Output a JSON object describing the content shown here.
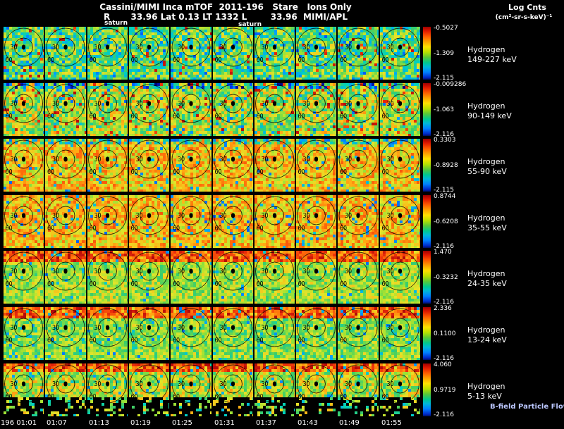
{
  "header": {
    "line1": "Cassini/MIMI Inca mTOF  2011-196   Stare   Ions Only",
    "line2": "R       33.96 Lat 0.13 LT 1332 L        33.96  MIMI/APL",
    "log_units_title": "Log Cnts",
    "log_units_sub": "(cm²-sr-s-keV)⁻¹"
  },
  "annotations": {
    "saturn_left": "saturn",
    "saturn_right": "saturn"
  },
  "overlay": {
    "inner_label": "30",
    "outer_label": "60"
  },
  "bfield_label": "B-field Particle Flow",
  "time_axis": [
    "196 01:01",
    "01:07",
    "01:13",
    "01:19",
    "01:25",
    "01:31",
    "01:37",
    "01:43",
    "01:49",
    "01:55"
  ],
  "rows": [
    {
      "species": "Hydrogen",
      "energy": "149-227 keV",
      "cbar_max": "-0.5027",
      "cbar_mid": "-1.309",
      "cbar_min": "-2.115"
    },
    {
      "species": "Hydrogen",
      "energy": "90-149 keV",
      "cbar_max": "-0.009286",
      "cbar_mid": "-1.063",
      "cbar_min": "-2.116"
    },
    {
      "species": "Hydrogen",
      "energy": "55-90 keV",
      "cbar_max": "0.3303",
      "cbar_mid": "-0.8928",
      "cbar_min": "-2.115"
    },
    {
      "species": "Hydrogen",
      "energy": "35-55 keV",
      "cbar_max": "0.8744",
      "cbar_mid": "-0.6208",
      "cbar_min": "-2.116"
    },
    {
      "species": "Hydrogen",
      "energy": "24-35 keV",
      "cbar_max": "1.470",
      "cbar_mid": "-0.3232",
      "cbar_min": "-2.116"
    },
    {
      "species": "Hydrogen",
      "energy": "13-24 keV",
      "cbar_max": "2.336",
      "cbar_mid": "0.1100",
      "cbar_min": "-2.116"
    },
    {
      "species": "Hydrogen",
      "energy": "5-13 keV",
      "cbar_max": "4.060",
      "cbar_mid": "0.9719",
      "cbar_min": "-2.116"
    }
  ],
  "chart_data": {
    "type": "heatmap",
    "title": "Cassini/MIMI Inca mTOF 2011-196 Stare Ions Only",
    "subtitle": "R 33.96 Lat 0.13 LT 1332 L 33.96 MIMI/APL",
    "instrument": "MIMI/APL",
    "date_doy": "2011-196",
    "mode": "Stare",
    "selection": "Ions Only",
    "units": "Log Cnts (cm2-sr-s-keV)-1",
    "layout": "7 energy-band rows x 10 six-minute sky-map frames; per-row rainbow colorbar at right (red=max, blue=min)",
    "overlay_circles_deg": [
      30,
      60
    ],
    "overlay_marker": "Saturn disk at frame center",
    "time_ticks": [
      "196 01:01",
      "01:07",
      "01:13",
      "01:19",
      "01:25",
      "01:31",
      "01:37",
      "01:43",
      "01:49",
      "01:55"
    ],
    "rows": [
      {
        "species": "Hydrogen",
        "energy_range_keV": "149-227",
        "cbar": {
          "max": -0.5027,
          "mid": -1.309,
          "min": -2.115
        },
        "palette_profile": "green with cyan/blue patches, sparse orange"
      },
      {
        "species": "Hydrogen",
        "energy_range_keV": "90-149",
        "cbar": {
          "max": -0.009286,
          "mid": -1.063,
          "min": -2.116
        },
        "palette_profile": "green-yellow with orange patches, cyan at top edges"
      },
      {
        "species": "Hydrogen",
        "energy_range_keV": "55-90",
        "cbar": {
          "max": 0.3303,
          "mid": -0.8928,
          "min": -2.115
        },
        "palette_profile": "orange/red dominant, cyan strip at top"
      },
      {
        "species": "Hydrogen",
        "energy_range_keV": "35-55",
        "cbar": {
          "max": 0.8744,
          "mid": -0.6208,
          "min": -2.116
        },
        "palette_profile": "orange/red dominant with blue specks"
      },
      {
        "species": "Hydrogen",
        "energy_range_keV": "24-35",
        "cbar": {
          "max": 1.47,
          "mid": -0.3232,
          "min": -2.116
        },
        "palette_profile": "yellow-green body, red band at top"
      },
      {
        "species": "Hydrogen",
        "energy_range_keV": "13-24",
        "cbar": {
          "max": 2.336,
          "mid": 0.11,
          "min": -2.116
        },
        "palette_profile": "green body, orange band at top, cyan specks"
      },
      {
        "species": "Hydrogen",
        "energy_range_keV": "5-13",
        "cbar": {
          "max": 4.06,
          "mid": 0.9719,
          "min": -2.116
        },
        "palette_profile": "orange top, green middle, black (no data) bottom"
      }
    ],
    "colormap": "rainbow (blue=low, red=high)"
  }
}
